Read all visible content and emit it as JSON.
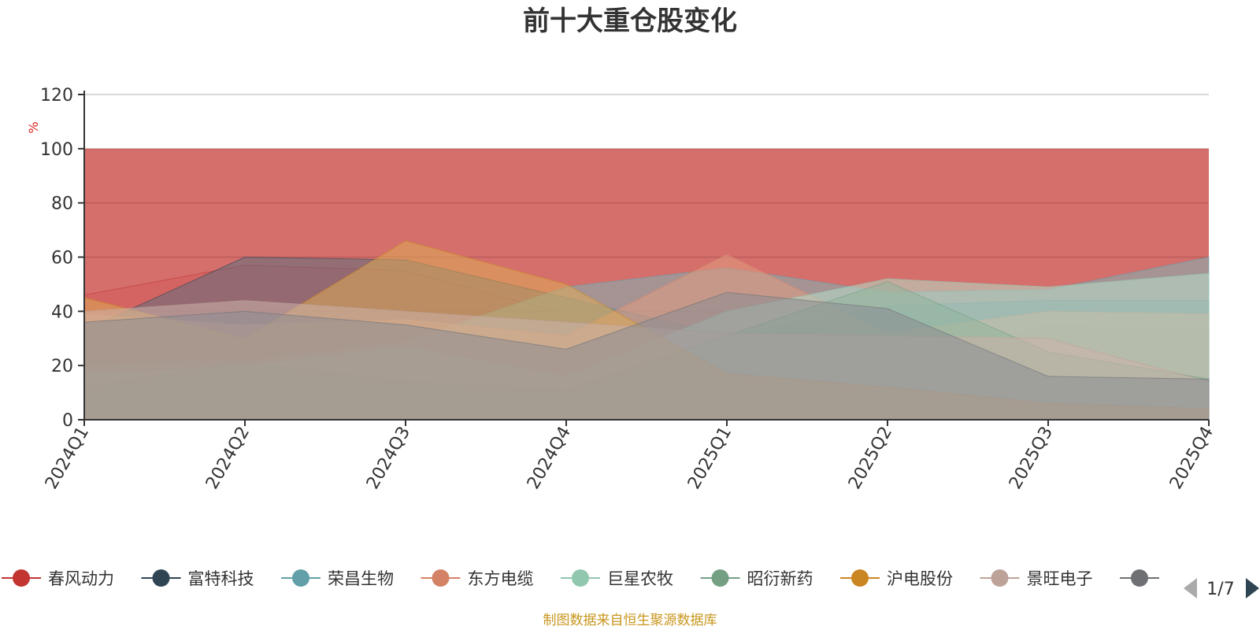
{
  "chart_data": {
    "type": "area",
    "title": "前十大重仓股变化",
    "ylabel": "%",
    "ylim": [
      0,
      120
    ],
    "yticks": [
      0,
      20,
      40,
      60,
      80,
      100,
      120
    ],
    "categories": [
      "2024Q1",
      "2024Q2",
      "2024Q3",
      "2024Q4",
      "2025Q1",
      "2025Q2",
      "2025Q3",
      "2025Q4"
    ],
    "background_band": {
      "from": 0,
      "to": 100,
      "color": "#d46f6c"
    },
    "series": [
      {
        "name": "春风动力",
        "color": "#c23531",
        "values": [
          46,
          57,
          55,
          39,
          26,
          17,
          35,
          33
        ]
      },
      {
        "name": "富特科技",
        "color": "#2f4554",
        "values": [
          33,
          60,
          59,
          45,
          31,
          42,
          44,
          44
        ]
      },
      {
        "name": "荣昌生物",
        "color": "#61a0a8",
        "values": [
          20,
          22,
          29,
          49,
          56,
          47,
          48,
          60
        ]
      },
      {
        "name": "东方电缆",
        "color": "#d48265",
        "values": [
          39,
          35,
          37,
          31,
          61,
          32,
          40,
          39
        ]
      },
      {
        "name": "巨星农牧",
        "color": "#91c7ae",
        "values": [
          17,
          20,
          27,
          16,
          40,
          52,
          49,
          54
        ]
      },
      {
        "name": "昭衍新药",
        "color": "#749f83",
        "values": [
          12,
          21,
          14,
          11,
          31,
          51,
          25,
          15
        ]
      },
      {
        "name": "沪电股份",
        "color": "#ca8622",
        "values": [
          45,
          30,
          66,
          50,
          17,
          12,
          6,
          4
        ]
      },
      {
        "name": "景旺电子",
        "color": "#bda29a",
        "values": [
          40,
          44,
          40,
          36,
          32,
          31,
          30,
          14
        ]
      },
      {
        "name": "",
        "color": "#6e7074",
        "values": [
          36,
          40,
          35,
          26,
          47,
          41,
          16,
          15
        ]
      }
    ],
    "legend_placement": "bottom",
    "grid": true
  },
  "legend": {
    "page_indicator": "1/7",
    "prev_icon": "triangle-left-icon",
    "next_icon": "triangle-right-icon"
  },
  "footer": {
    "source": "制图数据来自恒生聚源数据库"
  }
}
